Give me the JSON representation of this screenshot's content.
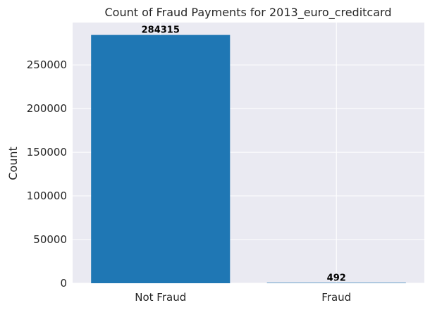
{
  "chart_data": {
    "type": "bar",
    "title": "Count of Fraud Payments for 2013_euro_creditcard",
    "xlabel": "",
    "ylabel": "Count",
    "categories": [
      "Not Fraud",
      "Fraud"
    ],
    "values": [
      284315,
      492
    ],
    "value_labels": [
      "284315",
      "492"
    ],
    "ylim": [
      0,
      298531
    ],
    "yticks": [
      0,
      50000,
      100000,
      150000,
      200000,
      250000
    ],
    "ytick_labels": [
      "0",
      "50000",
      "100000",
      "150000",
      "200000",
      "250000"
    ],
    "grid": true,
    "bar_color": "#1f77b4",
    "background_color": "#eaeaf2"
  }
}
